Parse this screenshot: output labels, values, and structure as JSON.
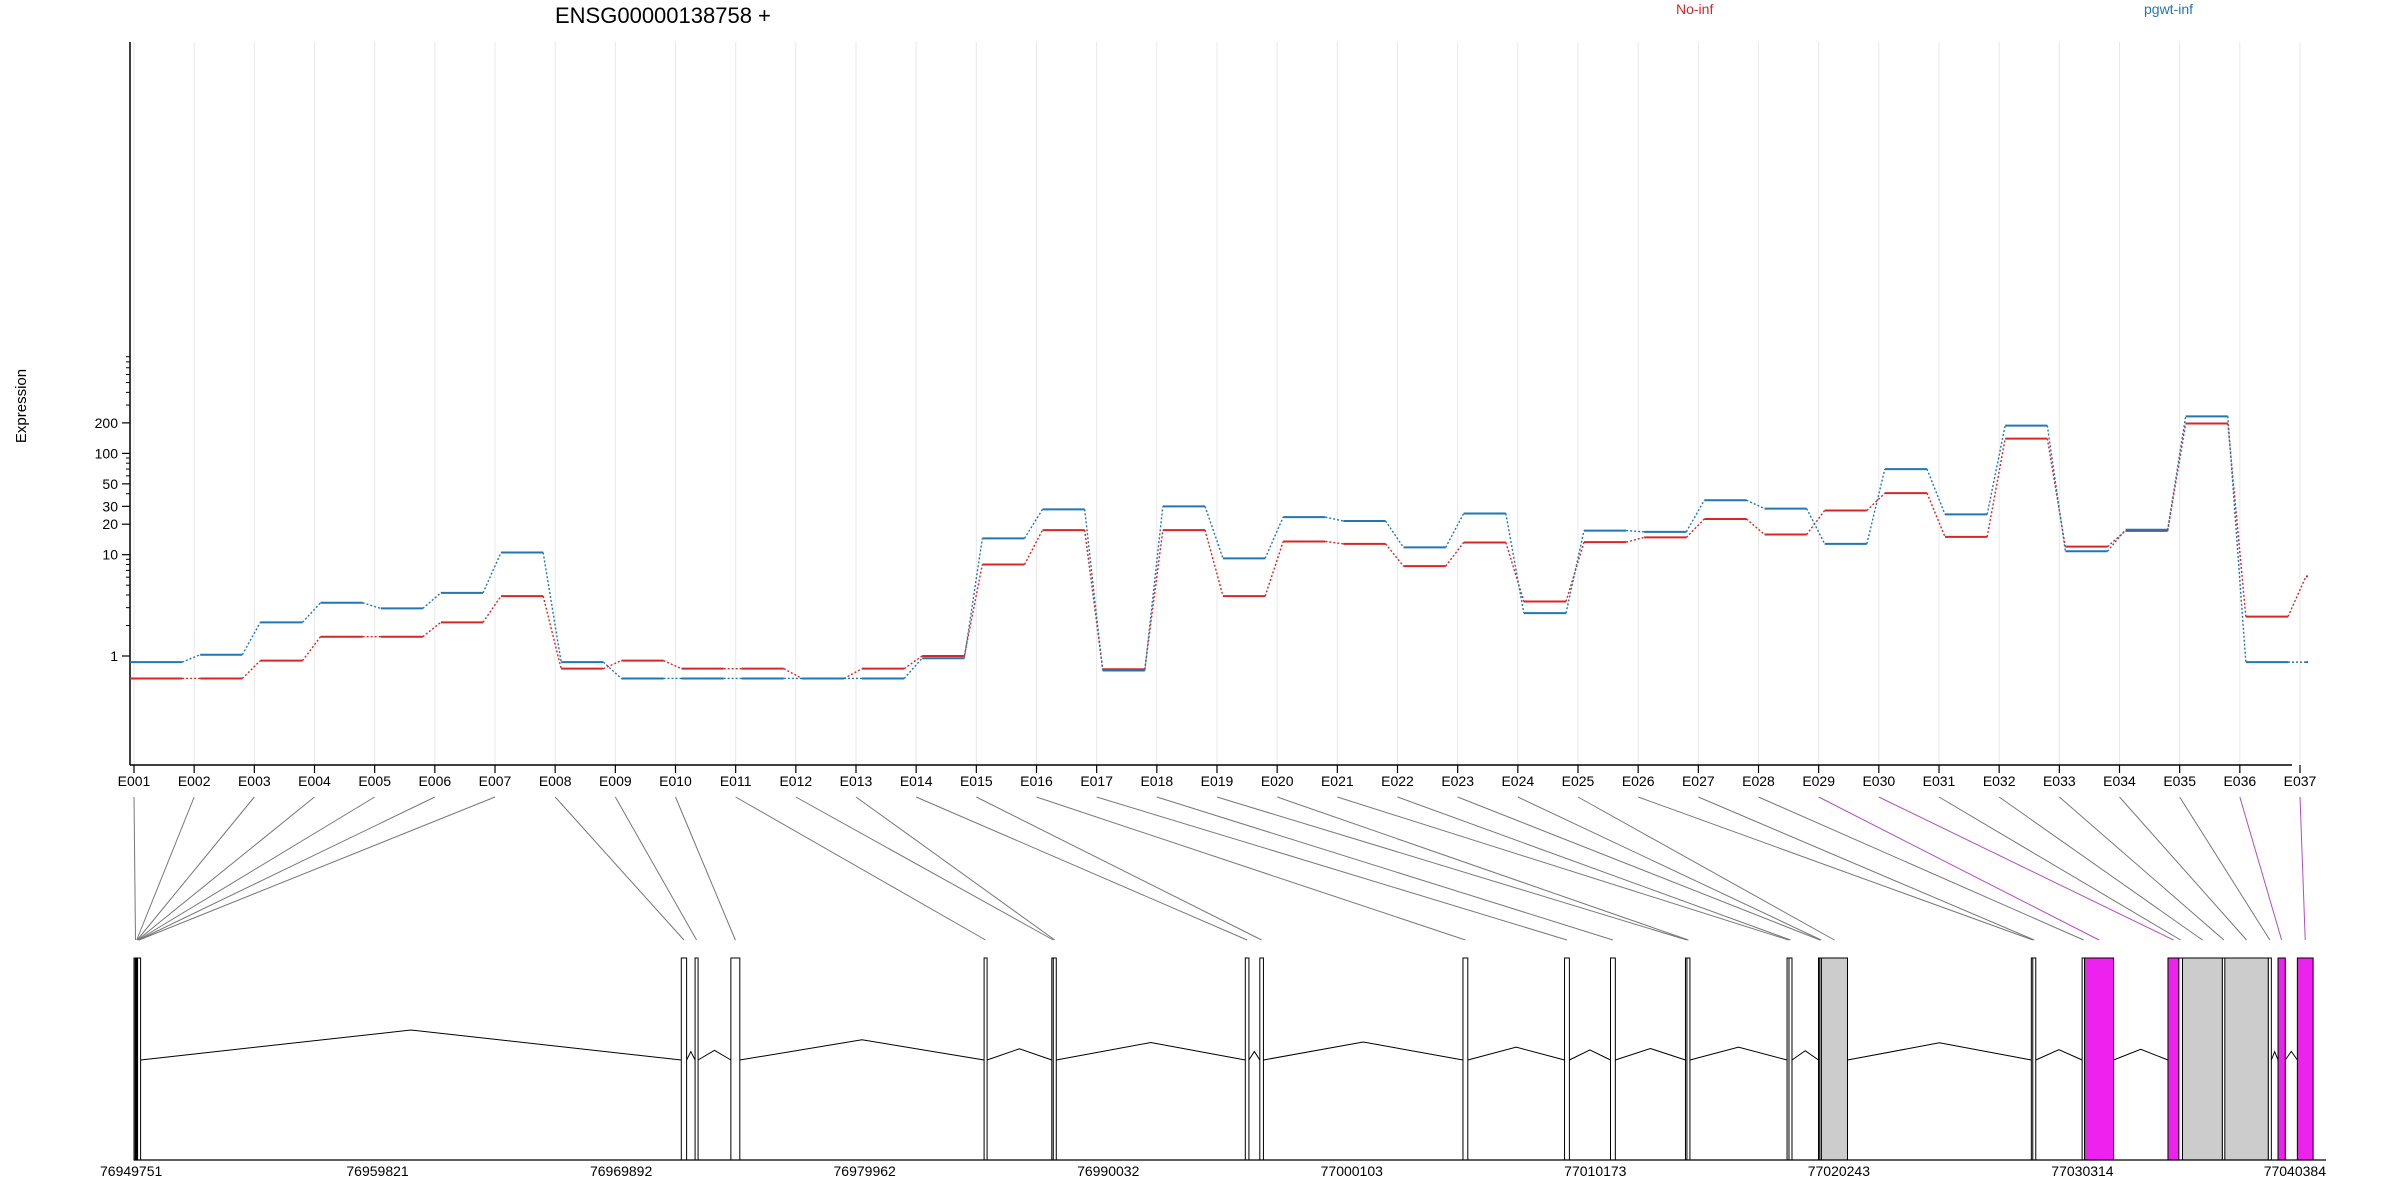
{
  "chart_data": {
    "type": "line",
    "title": "ENSG00000138758 +",
    "ylabel": "Expression",
    "xlabel": "",
    "yscale": "log",
    "ylim": [
      0.55,
      260
    ],
    "yticks": [
      1,
      10,
      20,
      30,
      50,
      100,
      200
    ],
    "grid": "vertical-light",
    "legend_placement": "top-right",
    "categories": [
      "E001",
      "E002",
      "E003",
      "E004",
      "E005",
      "E006",
      "E007",
      "E008",
      "E009",
      "E010",
      "E011",
      "E012",
      "E013",
      "E014",
      "E015",
      "E016",
      "E017",
      "E018",
      "E019",
      "E020",
      "E021",
      "E022",
      "E023",
      "E024",
      "E025",
      "E026",
      "E027",
      "E028",
      "E029",
      "E030",
      "E031",
      "E032",
      "E033",
      "E034",
      "E035",
      "E036",
      "E037"
    ],
    "series": [
      {
        "name": "No-inf",
        "color": "#d62728",
        "values": [
          0.6,
          0.6,
          0.9,
          1.55,
          1.55,
          2.15,
          3.9,
          0.75,
          0.9,
          0.75,
          0.75,
          0.6,
          0.75,
          1.0,
          8.0,
          17.5,
          0.74,
          17.5,
          3.9,
          13.5,
          12.8,
          7.7,
          13.2,
          3.45,
          13.3,
          14.8,
          22.5,
          15.8,
          27.3,
          40.5,
          15.0,
          140,
          12.0,
          17.2,
          197,
          2.45,
          6.1
        ]
      },
      {
        "name": "pgwt-inf",
        "color": "#1f77b4",
        "values": [
          0.87,
          1.03,
          2.15,
          3.35,
          2.95,
          4.2,
          10.5,
          0.87,
          0.6,
          0.6,
          0.6,
          0.6,
          0.6,
          0.95,
          14.5,
          28.0,
          0.72,
          30.0,
          9.2,
          23.5,
          21.5,
          11.8,
          25.5,
          2.65,
          17.3,
          16.8,
          34.5,
          28.5,
          12.8,
          70.0,
          25.0,
          188,
          10.8,
          17.6,
          232,
          0.87,
          0.87
        ]
      }
    ],
    "gene_model": {
      "coordinate_ticks": [
        "76949751",
        "76959821",
        "76969892",
        "76979962",
        "76990032",
        "77000103",
        "77010173",
        "77020243",
        "77030314",
        "77040384"
      ],
      "coord_range": [
        76949751,
        77040384
      ],
      "exon_fill": {
        "plain": "#ffffff",
        "intermediate": "#cccccc",
        "highlighted": "#ee22ee"
      },
      "exons": [
        {
          "id": "E001",
          "start": 76949751,
          "end": 76949800,
          "fill": "plain"
        },
        {
          "id": "E002",
          "start": 76949800,
          "end": 76949820,
          "fill": "plain"
        },
        {
          "id": "E003",
          "start": 76949820,
          "end": 76949840,
          "fill": "plain"
        },
        {
          "id": "E004",
          "start": 76949840,
          "end": 76949860,
          "fill": "plain"
        },
        {
          "id": "E005",
          "start": 76949860,
          "end": 76949880,
          "fill": "plain"
        },
        {
          "id": "E006",
          "start": 76949880,
          "end": 76949900,
          "fill": "plain"
        },
        {
          "id": "E007",
          "start": 76949900,
          "end": 76949920,
          "fill": "plain"
        },
        {
          "id": "E008",
          "start": 76972380,
          "end": 76972600,
          "fill": "plain"
        },
        {
          "id": "E009",
          "start": 76972950,
          "end": 76973000,
          "fill": "plain"
        },
        {
          "id": "E010",
          "start": 76974430,
          "end": 76974800,
          "fill": "plain"
        },
        {
          "id": "E011",
          "start": 76984900,
          "end": 76985000,
          "fill": "plain"
        },
        {
          "id": "E012",
          "start": 76987700,
          "end": 76987760,
          "fill": "plain"
        },
        {
          "id": "E013",
          "start": 76987760,
          "end": 76987820,
          "fill": "plain"
        },
        {
          "id": "E014",
          "start": 76995700,
          "end": 76995850,
          "fill": "plain"
        },
        {
          "id": "E015",
          "start": 76996300,
          "end": 76996450,
          "fill": "plain"
        },
        {
          "id": "E016",
          "start": 77004700,
          "end": 77004900,
          "fill": "plain"
        },
        {
          "id": "E017",
          "start": 77008900,
          "end": 77009100,
          "fill": "plain"
        },
        {
          "id": "E018",
          "start": 77010800,
          "end": 77011000,
          "fill": "plain"
        },
        {
          "id": "E019",
          "start": 77013900,
          "end": 77013960,
          "fill": "plain"
        },
        {
          "id": "E020",
          "start": 77013960,
          "end": 77014020,
          "fill": "plain"
        },
        {
          "id": "E021",
          "start": 77018100,
          "end": 77018180,
          "fill": "plain"
        },
        {
          "id": "E022",
          "start": 77018180,
          "end": 77018260,
          "fill": "plain"
        },
        {
          "id": "E023",
          "start": 77019400,
          "end": 77019450,
          "fill": "plain"
        },
        {
          "id": "E024",
          "start": 77019450,
          "end": 77019520,
          "fill": "intermediate"
        },
        {
          "id": "E025",
          "start": 77019520,
          "end": 77020600,
          "fill": "intermediate"
        },
        {
          "id": "E026",
          "start": 77028200,
          "end": 77028260,
          "fill": "plain"
        },
        {
          "id": "E027",
          "start": 77028260,
          "end": 77028320,
          "fill": "plain"
        },
        {
          "id": "E028",
          "start": 77030300,
          "end": 77030400,
          "fill": "plain"
        },
        {
          "id": "E029",
          "start": 77030400,
          "end": 77031600,
          "fill": "highlighted"
        },
        {
          "id": "E030",
          "start": 77033850,
          "end": 77034300,
          "fill": "highlighted"
        },
        {
          "id": "E031",
          "start": 77034300,
          "end": 77034450,
          "fill": "plain"
        },
        {
          "id": "E032",
          "start": 77034450,
          "end": 77036100,
          "fill": "intermediate"
        },
        {
          "id": "E033",
          "start": 77036100,
          "end": 77036200,
          "fill": "plain"
        },
        {
          "id": "E034",
          "start": 77036200,
          "end": 77038000,
          "fill": "intermediate"
        },
        {
          "id": "E035",
          "start": 77038000,
          "end": 77038100,
          "fill": "plain"
        },
        {
          "id": "E036",
          "start": 77038400,
          "end": 77038700,
          "fill": "highlighted"
        },
        {
          "id": "E037",
          "start": 77039200,
          "end": 77039850,
          "fill": "highlighted"
        }
      ]
    }
  }
}
